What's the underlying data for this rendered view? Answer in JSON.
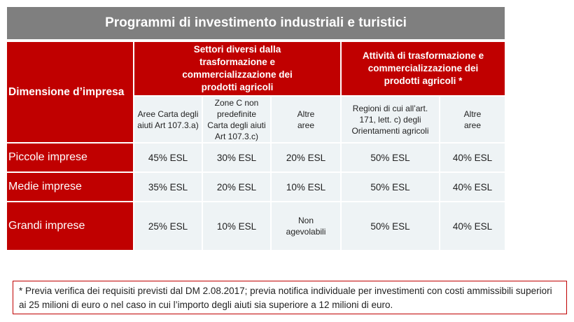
{
  "title": "Programmi di investimento industriali e turistici",
  "header": {
    "dimension_label": "Dimensione d’impresa",
    "group1_label": "Settori diversi dalla trasformazione e commercializzazione dei prodotti agricoli",
    "group2_label": "Attività di trasformazione e commercializzazione dei prodotti agricoli *"
  },
  "columns": [
    "Aree Carta degli aiuti Art 107.3.a)",
    "Zone C non predefinite Carta degli aiuti Art 107.3.c)",
    "Altre aree",
    "Regioni di cui all’art. 171, lett. c) degli Orientamenti agricoli",
    "Altre aree"
  ],
  "rows": [
    {
      "label": "Piccole imprese",
      "values": [
        "45% ESL",
        "30% ESL",
        "20% ESL",
        "50% ESL",
        "40% ESL"
      ]
    },
    {
      "label": "Medie imprese",
      "values": [
        "35% ESL",
        "20% ESL",
        "10% ESL",
        "50% ESL",
        "40% ESL"
      ]
    },
    {
      "label": "Grandi imprese",
      "values": [
        "25% ESL",
        "10% ESL",
        "Non agevolabili",
        "50% ESL",
        "40% ESL"
      ]
    }
  ],
  "footnote": "* Previa verifica dei requisiti previsti dal DM 2.08.2017; previa notifica individuale per investimenti con costi ammissibili superiori ai 25 milioni di euro o nel caso in cui l’importo degli aiuti sia superiore a 12 milioni di euro.",
  "colors": {
    "accent_red": "#c00000",
    "title_gray": "#7f7f7f",
    "cell_bg": "#eef3f5"
  }
}
